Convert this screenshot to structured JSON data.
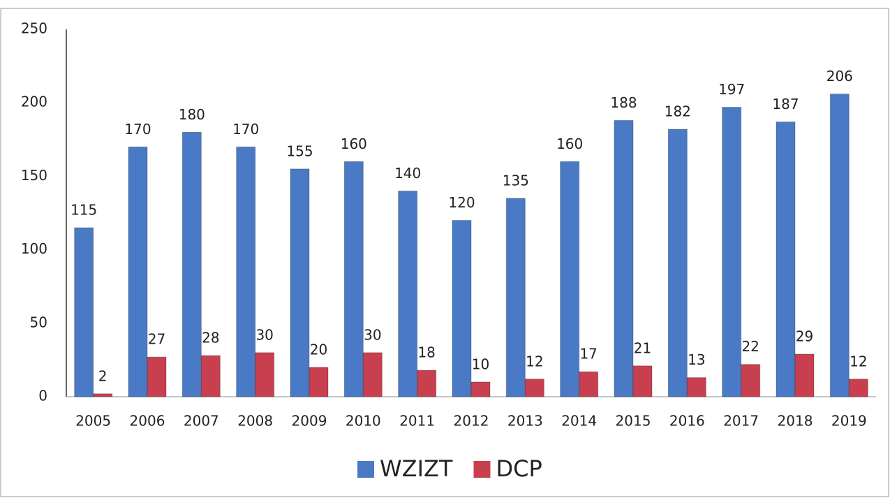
{
  "chart_data": {
    "type": "bar",
    "categories": [
      "2005",
      "2006",
      "2007",
      "2008",
      "2009",
      "2010",
      "2011",
      "2012",
      "2013",
      "2014",
      "2015",
      "2016",
      "2017",
      "2018",
      "2019"
    ],
    "series": [
      {
        "name": "WZIZT",
        "color": "#4a7ac6",
        "values": [
          115,
          170,
          180,
          170,
          155,
          160,
          140,
          120,
          135,
          160,
          188,
          182,
          197,
          187,
          206
        ]
      },
      {
        "name": "DCP",
        "color": "#c8404f",
        "values": [
          2,
          27,
          28,
          30,
          20,
          30,
          18,
          10,
          12,
          17,
          21,
          13,
          22,
          29,
          12
        ]
      }
    ],
    "ylim": [
      0,
      250
    ],
    "yticks": [
      0,
      50,
      100,
      150,
      200,
      250
    ],
    "grid": false,
    "legend": "bottom"
  }
}
